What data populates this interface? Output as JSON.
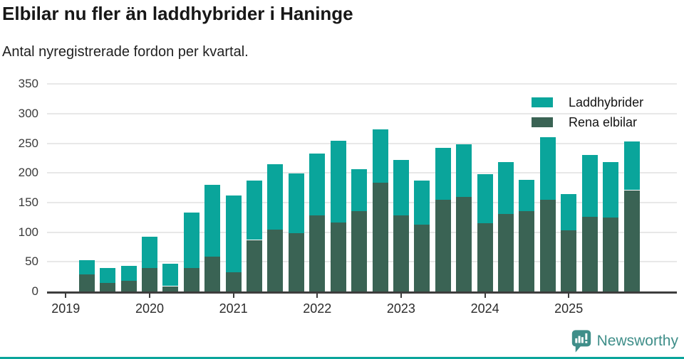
{
  "header": {
    "title": "Elbilar nu fler än laddhybrider i Haninge",
    "subtitle": "Antal nyregistrerade fordon per kvartal."
  },
  "legend": [
    {
      "label": "Laddhybrider",
      "color": "#0aa59b"
    },
    {
      "label": "Rena elbilar",
      "color": "#3a6354"
    }
  ],
  "footer": {
    "brand": "Newsworthy"
  },
  "colors": {
    "laddhybrider": "#0aa59b",
    "rena_elbilar": "#3a6354",
    "grid": "#e8e8e8",
    "axis": "#3d3d3d",
    "brand": "#3f8e89",
    "bottom_bar": "#0aa59b"
  },
  "chart_data": {
    "type": "bar",
    "stacked": true,
    "title": "Elbilar nu fler än laddhybrider i Haninge",
    "subtitle": "Antal nyregistrerade fordon per kvartal.",
    "xlabel": "",
    "ylabel": "",
    "ylim": [
      0,
      350
    ],
    "grid": true,
    "legend_position": "top-right",
    "categories": [
      "2019-Q2",
      "2019-Q3",
      "2019-Q4",
      "2020-Q1",
      "2020-Q2",
      "2020-Q3",
      "2020-Q4",
      "2021-Q1",
      "2021-Q2",
      "2021-Q3",
      "2021-Q4",
      "2022-Q1",
      "2022-Q2",
      "2022-Q3",
      "2022-Q4",
      "2023-Q1",
      "2023-Q2",
      "2023-Q3",
      "2023-Q4",
      "2024-Q1",
      "2024-Q2",
      "2024-Q3",
      "2024-Q4",
      "2025-Q1",
      "2025-Q2",
      "2025-Q3",
      "2025-Q4"
    ],
    "series": [
      {
        "name": "Rena elbilar",
        "color": "#3a6354",
        "values": [
          29,
          14,
          18,
          40,
          9,
          40,
          59,
          32,
          87,
          104,
          98,
          129,
          116,
          136,
          184,
          129,
          113,
          155,
          160,
          115,
          131,
          136,
          155,
          103,
          126,
          125,
          171
        ]
      },
      {
        "name": "Laddhybrider",
        "color": "#0aa59b",
        "values": [
          24,
          26,
          25,
          53,
          38,
          93,
          121,
          130,
          100,
          111,
          101,
          104,
          138,
          70,
          90,
          93,
          74,
          87,
          89,
          83,
          87,
          52,
          105,
          61,
          105,
          93,
          82
        ]
      }
    ],
    "totals": [
      53,
      40,
      43,
      93,
      47,
      133,
      180,
      162,
      187,
      215,
      199,
      233,
      254,
      206,
      274,
      222,
      187,
      242,
      249,
      198,
      218,
      188,
      260,
      164,
      231,
      218,
      253
    ],
    "yticks": [
      0,
      50,
      100,
      150,
      200,
      250,
      300,
      350
    ],
    "xticks": [
      {
        "label": "2019",
        "index": -1
      },
      {
        "label": "2020",
        "index": 3
      },
      {
        "label": "2021",
        "index": 7
      },
      {
        "label": "2022",
        "index": 11
      },
      {
        "label": "2023",
        "index": 15
      },
      {
        "label": "2024",
        "index": 19
      },
      {
        "label": "2025",
        "index": 23
      }
    ]
  }
}
